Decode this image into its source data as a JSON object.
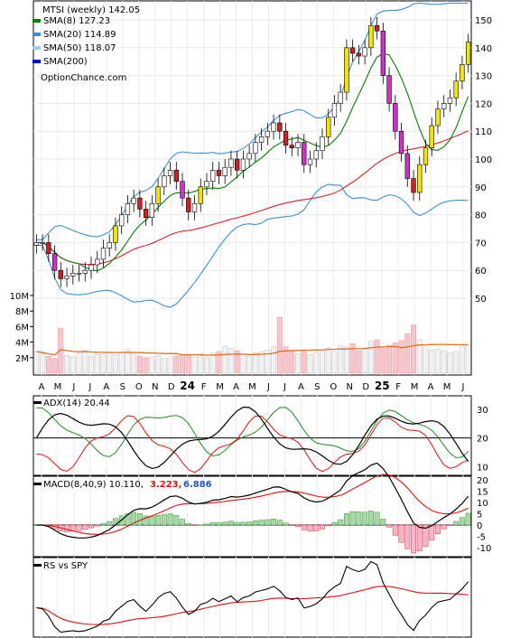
{
  "chart_data": [
    {
      "type": "line",
      "panel": "price",
      "title": "MTSI (weekly) 142.05",
      "watermark": "OptionChance.com",
      "legend": [
        {
          "label": "SMA(8) 127.23",
          "color": "#008000"
        },
        {
          "label": "SMA(20) 114.89",
          "color": "#3a8fd6"
        },
        {
          "label": "SMA(50) 118.07",
          "color": "#9ecbea"
        },
        {
          "label": "SMA(200)",
          "color": "#0000cc"
        }
      ],
      "series_colors": {
        "sma8": "#008000",
        "bb_upper": "#3a8fd6",
        "bb_lower": "#3a8fd6",
        "sma50": "#dd2222",
        "yellow": "#e8d800",
        "volume_avg": "#e07020"
      },
      "ylim": [
        45,
        155
      ],
      "yticks": [
        50,
        60,
        70,
        80,
        90,
        100,
        110,
        120,
        130,
        140,
        150
      ],
      "x_labels": [
        "A",
        "M",
        "J",
        "J",
        "A",
        "S",
        "O",
        "N",
        "D",
        "24",
        "F",
        "M",
        "A",
        "M",
        "J",
        "J",
        "A",
        "S",
        "O",
        "N",
        "D",
        "25",
        "F",
        "M",
        "A",
        "M",
        "J"
      ],
      "volume_ticks": [
        "10M",
        "8M",
        "6M",
        "4M",
        "2M"
      ],
      "close": [
        70,
        70,
        66,
        60,
        57,
        58,
        59,
        59,
        60,
        62,
        64,
        68,
        70,
        76,
        80,
        84,
        86,
        82,
        79,
        84,
        90,
        94,
        96,
        92,
        86,
        81,
        84,
        90,
        92,
        96,
        94,
        97,
        100,
        96,
        100,
        102,
        106,
        108,
        110,
        113,
        110,
        105,
        104,
        106,
        98,
        100,
        103,
        108,
        115,
        120,
        124,
        140,
        138,
        137,
        140,
        148,
        146,
        130,
        120,
        110,
        102,
        93,
        88,
        98,
        104,
        112,
        118,
        120,
        122,
        128,
        134,
        142
      ],
      "volume": [
        2.8,
        2.5,
        2.2,
        1.9,
        5.8,
        2.3,
        2.1,
        2.6,
        2.9,
        2.2,
        2.4,
        2.5,
        2.6,
        2.4,
        2.7,
        3.1,
        2.5,
        2.2,
        2.0,
        2.1,
        2.3,
        1.9,
        2.0,
        2.2,
        2.4,
        2.3,
        2.1,
        2.5,
        2.0,
        2.6,
        2.8,
        3.5,
        3.2,
        2.9,
        2.4,
        2.2,
        2.6,
        2.8,
        3.0,
        3.4,
        7.2,
        3.4,
        2.8,
        2.5,
        3.0,
        2.4,
        2.6,
        2.9,
        3.3,
        2.8,
        3.6,
        3.4,
        3.8,
        2.9,
        3.1,
        4.1,
        4.3,
        3.2,
        3.6,
        3.9,
        4.2,
        5.1,
        6.2,
        4.3,
        3.4,
        3.0,
        3.1,
        2.9,
        2.6,
        2.8,
        3.5,
        3.6
      ]
    },
    {
      "type": "line",
      "panel": "adx",
      "title": "ADX(14) 20.44",
      "series_colors": {
        "adx": "#000000",
        "plus_di": "#228822",
        "minus_di": "#dd1111"
      },
      "ylim": [
        7,
        35
      ],
      "yticks": [
        10,
        20,
        30
      ]
    },
    {
      "type": "line",
      "panel": "macd",
      "title": "MACD(8,40,9) 10.110,",
      "values_text": [
        "3.223,",
        "6.886"
      ],
      "values_colors": [
        "#dd1111",
        "#2255cc"
      ],
      "series_colors": {
        "macd": "#000000",
        "signal": "#dd1111",
        "hist_pos": "#3a9a3a",
        "hist_neg": "#dd3355"
      },
      "ylim": [
        -14,
        22
      ],
      "yticks": [
        20,
        15,
        10,
        5,
        0,
        -5,
        -10
      ]
    },
    {
      "type": "line",
      "panel": "rs",
      "title": "RS vs SPY",
      "series_colors": {
        "rs": "#000000",
        "rs_ma": "#dd1111"
      }
    }
  ]
}
